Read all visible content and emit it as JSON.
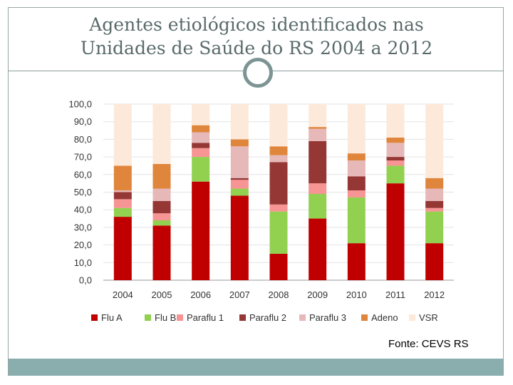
{
  "slide": {
    "title_line1": "Agentes etiológicos identificados nas",
    "title_line2": "Unidades de Saúde do RS 2004 a 2012",
    "source": "Fonte: CEVS RS"
  },
  "chart_data": {
    "type": "bar",
    "stacked": true,
    "title": "",
    "xlabel": "",
    "ylabel": "",
    "ylim": [
      0,
      100
    ],
    "y_ticks": [
      "0,0",
      "10,0",
      "20,0",
      "30,0",
      "40,0",
      "50,0",
      "60,0",
      "70,0",
      "80,0",
      "90,0",
      "100,0"
    ],
    "categories": [
      "2004",
      "2005",
      "2006",
      "2007",
      "2008",
      "2009",
      "2010",
      "2011",
      "2012"
    ],
    "legend_position": "bottom",
    "series": [
      {
        "name": "Flu A",
        "color": "#c00000",
        "values": [
          36,
          31,
          56,
          48,
          15,
          35,
          21,
          55,
          21
        ]
      },
      {
        "name": "Flu B",
        "color": "#92d050",
        "values": [
          5,
          3,
          14,
          4,
          24,
          14,
          26,
          10,
          18
        ]
      },
      {
        "name": "Paraflu 1",
        "color": "#f79494",
        "values": [
          5,
          4,
          5,
          5,
          4,
          6,
          4,
          3,
          2
        ]
      },
      {
        "name": "Paraflu 2",
        "color": "#953735",
        "values": [
          4,
          7,
          3,
          1,
          24,
          24,
          8,
          2,
          4
        ]
      },
      {
        "name": "Paraflu 3",
        "color": "#e6b9b8",
        "values": [
          1,
          7,
          6,
          18,
          4,
          7,
          9,
          8,
          7
        ]
      },
      {
        "name": "Adeno",
        "color": "#e0853c",
        "values": [
          14,
          14,
          4,
          4,
          5,
          1,
          4,
          3,
          6
        ]
      },
      {
        "name": "VSR",
        "color": "#fde9d9",
        "values": [
          35,
          34,
          12,
          20,
          24,
          13,
          28,
          19,
          42
        ]
      }
    ]
  }
}
